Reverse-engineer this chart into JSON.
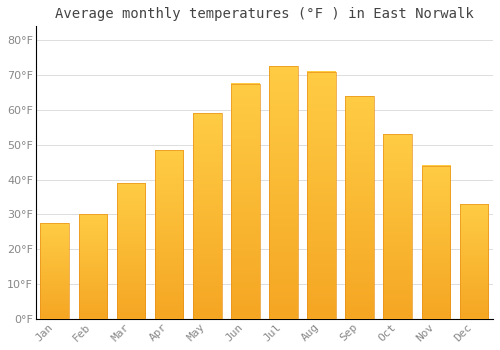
{
  "title": "Average monthly temperatures (°F ) in East Norwalk",
  "months": [
    "Jan",
    "Feb",
    "Mar",
    "Apr",
    "May",
    "Jun",
    "Jul",
    "Aug",
    "Sep",
    "Oct",
    "Nov",
    "Dec"
  ],
  "values": [
    27.5,
    30.0,
    39.0,
    48.5,
    59.0,
    67.5,
    72.5,
    71.0,
    64.0,
    53.0,
    44.0,
    33.0
  ],
  "bar_color_top": "#FFCC44",
  "bar_color_bottom": "#F5A623",
  "bar_edge_color": "#E8911A",
  "background_color": "#FFFFFF",
  "grid_color": "#DDDDDD",
  "ylim": [
    0,
    84
  ],
  "yticks": [
    0,
    10,
    20,
    30,
    40,
    50,
    60,
    70,
    80
  ],
  "title_fontsize": 10,
  "tick_fontsize": 8,
  "tick_label_color": "#888888",
  "title_color": "#444444",
  "bar_width": 0.75
}
